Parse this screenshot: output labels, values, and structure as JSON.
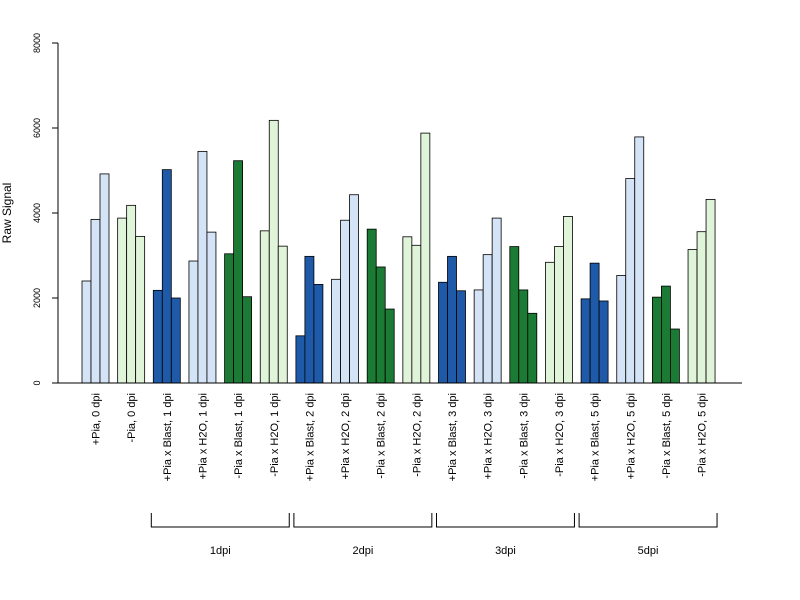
{
  "chart_data": {
    "type": "bar",
    "ylabel": "Raw Signal",
    "ylim": [
      0,
      8000
    ],
    "yticks": [
      0,
      2000,
      4000,
      6000,
      8000
    ],
    "grid": false,
    "categories": [
      "+Pia, 0 dpi",
      "-Pia, 0 dpi",
      "+Pia x Blast, 1 dpi",
      "+Pia x H2O, 1 dpi",
      "-Pia x Blast, 1 dpi",
      "-Pia x H2O, 1 dpi",
      "+Pia x Blast, 2 dpi",
      "+Pia x H2O, 2 dpi",
      "-Pia x Blast, 2 dpi",
      "-Pia x H2O, 2 dpi",
      "+Pia x Blast, 3 dpi",
      "+Pia x H2O, 3 dpi",
      "-Pia x Blast, 3 dpi",
      "-Pia x H2O, 3 dpi",
      "+Pia x Blast, 5 dpi",
      "+Pia x H2O, 5 dpi",
      "-Pia x Blast, 5 dpi",
      "-Pia x H2O, 5 dpi"
    ],
    "replicates": [
      [
        2400,
        3850,
        4920
      ],
      [
        3880,
        4180,
        3450
      ],
      [
        2180,
        5020,
        2000
      ],
      [
        2870,
        5450,
        3550
      ],
      [
        3040,
        5230,
        2030
      ],
      [
        3580,
        6180,
        3220
      ],
      [
        1110,
        2980,
        2320
      ],
      [
        2440,
        3830,
        4430
      ],
      [
        3620,
        2730,
        1740
      ],
      [
        3440,
        3240,
        5880
      ],
      [
        2370,
        2980,
        2170
      ],
      [
        2190,
        3020,
        3880
      ],
      [
        3210,
        2190,
        1640
      ],
      [
        2840,
        3210,
        3920
      ],
      [
        1980,
        2820,
        1930
      ],
      [
        2530,
        4810,
        5790
      ],
      [
        2020,
        2280,
        1270
      ],
      [
        3140,
        3560,
        4320
      ]
    ],
    "bar_colors": [
      "#d4e4f6",
      "#dff4d9",
      "#1e5aa8",
      "#d4e4f6",
      "#1b7a34",
      "#dff4d9",
      "#1e5aa8",
      "#d4e4f6",
      "#1b7a34",
      "#dff4d9",
      "#1e5aa8",
      "#d4e4f6",
      "#1b7a34",
      "#dff4d9",
      "#1e5aa8",
      "#d4e4f6",
      "#1b7a34",
      "#dff4d9"
    ],
    "timepoint_groups": [
      {
        "label": "1dpi",
        "from": 2,
        "to": 5
      },
      {
        "label": "2dpi",
        "from": 6,
        "to": 9
      },
      {
        "label": "3dpi",
        "from": 10,
        "to": 13
      },
      {
        "label": "5dpi",
        "from": 14,
        "to": 17
      }
    ]
  }
}
